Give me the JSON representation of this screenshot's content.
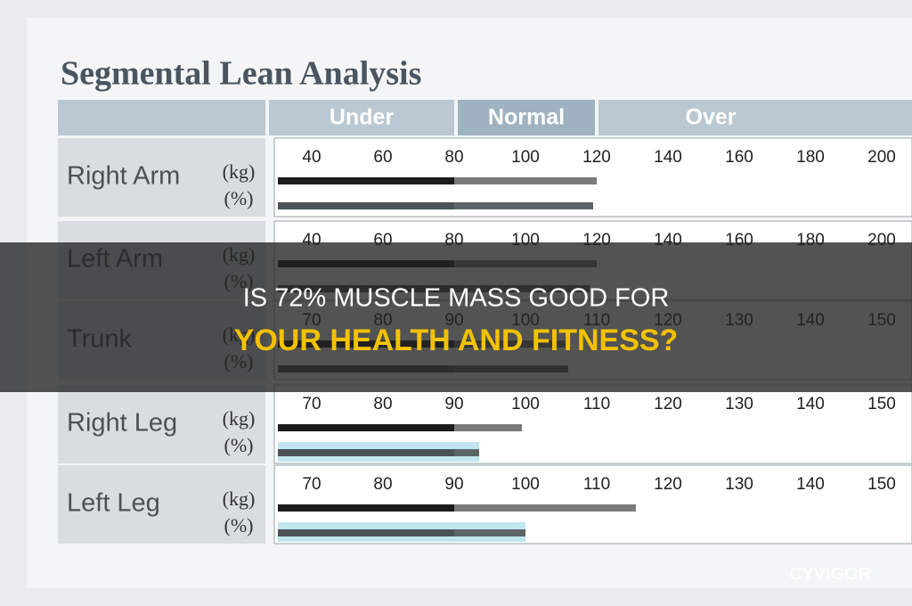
{
  "report": {
    "title": "Segmental Lean Analysis",
    "bands": [
      "Under",
      "Normal",
      "Over"
    ],
    "rows": [
      {
        "label": "Right Arm",
        "units": [
          "(kg)",
          "(%)"
        ],
        "ticks": [
          40,
          60,
          80,
          100,
          120,
          140,
          160,
          180,
          200
        ],
        "values": [
          120,
          119
        ]
      },
      {
        "label": "Left Arm",
        "units": [
          "(kg)",
          "(%)"
        ],
        "ticks": [
          40,
          60,
          80,
          100,
          120,
          140,
          160,
          180,
          200
        ],
        "values": [
          120,
          118
        ]
      },
      {
        "label": "Trunk",
        "units": [
          "(kg)",
          "(%)"
        ],
        "ticks": [
          70,
          80,
          90,
          100,
          110,
          120,
          130,
          140,
          150
        ],
        "values": [
          106,
          106
        ]
      },
      {
        "label": "Right Leg",
        "units": [
          "(kg)",
          "(%)"
        ],
        "ticks": [
          70,
          80,
          90,
          100,
          110,
          120,
          130,
          140,
          150
        ],
        "values": [
          99.5,
          93.5
        ]
      },
      {
        "label": "Left Leg",
        "units": [
          "(kg)",
          "(%)"
        ],
        "ticks": [
          70,
          80,
          90,
          100,
          110,
          120,
          130,
          140,
          150
        ],
        "values": [
          115.5,
          100
        ]
      }
    ]
  },
  "banner": {
    "lines": [
      "IS 72% MUSCLE MASS GOOD FOR",
      "YOUR HEALTH AND FITNESS?"
    ]
  },
  "watermark": "CYVIGOR"
}
